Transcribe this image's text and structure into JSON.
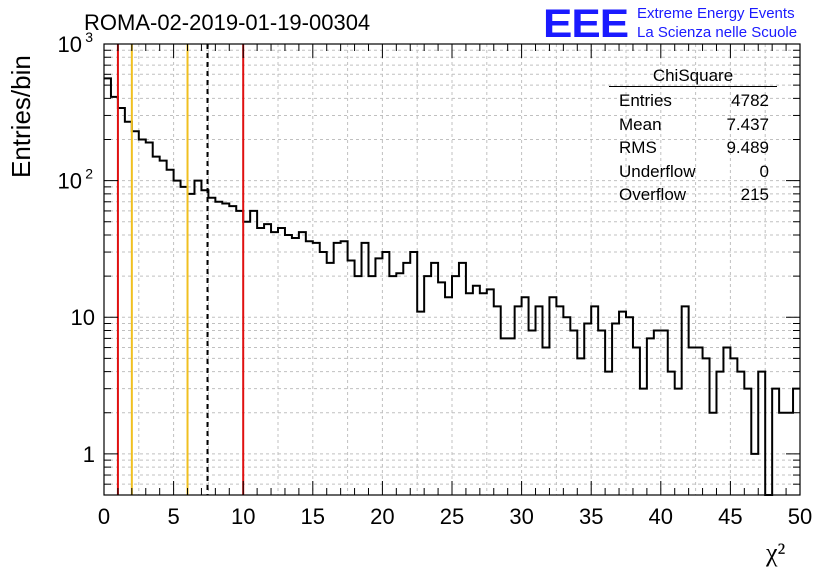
{
  "title": "ROMA-02-2019-01-19-00304",
  "logo": {
    "mark": "EEE",
    "line1": "Extreme Energy Events",
    "line2": "La Scienza nelle Scuole"
  },
  "stats": {
    "name": "ChiSquare",
    "rows": [
      {
        "label": "Entries",
        "value": "4782"
      },
      {
        "label": "Mean",
        "value": "7.437"
      },
      {
        "label": "RMS",
        "value": "9.489"
      },
      {
        "label": "Underflow",
        "value": "0"
      },
      {
        "label": "Overflow",
        "value": "215"
      }
    ]
  },
  "colors": {
    "red": "#e01010",
    "yellow": "#f0c020",
    "black": "#000000",
    "grid": "#c0c0c0",
    "logo": "#1a1aff"
  },
  "chart_data": {
    "type": "bar",
    "histogram": true,
    "xlabel": "χ²",
    "ylabel": "Entries/bin",
    "xlim": [
      0,
      50
    ],
    "ylim": [
      0.5,
      1000
    ],
    "yscale": "log",
    "grid": true,
    "bin_width": 0.5,
    "xticks": [
      "0",
      "5",
      "10",
      "15",
      "20",
      "25",
      "30",
      "35",
      "40",
      "45",
      "50"
    ],
    "yticks": [
      {
        "value": 1,
        "label": "1"
      },
      {
        "value": 10,
        "label": "10"
      },
      {
        "value": 100,
        "label": "10",
        "exp": "2"
      },
      {
        "value": 1000,
        "label": "10",
        "exp": "3"
      }
    ],
    "counts": [
      560,
      410,
      340,
      270,
      230,
      200,
      190,
      150,
      140,
      120,
      100,
      90,
      80,
      100,
      85,
      75,
      70,
      68,
      65,
      60,
      50,
      60,
      45,
      48,
      42,
      45,
      40,
      38,
      42,
      36,
      35,
      30,
      25,
      35,
      36,
      26,
      20,
      35,
      20,
      27,
      30,
      20,
      21,
      25,
      30,
      11,
      20,
      25,
      18,
      14,
      20,
      25,
      15,
      17,
      15,
      16,
      12,
      7,
      7,
      12,
      14,
      8,
      12,
      6,
      14,
      12,
      10,
      8,
      5,
      9,
      12,
      8,
      4,
      9,
      11,
      10,
      6,
      3,
      7,
      8,
      8,
      4,
      3,
      12,
      6,
      6,
      5,
      2,
      4,
      6,
      5,
      4,
      3,
      1,
      4,
      0.3,
      3,
      2,
      2,
      3
    ],
    "vlines": [
      {
        "x": 1,
        "color": "red",
        "style": "solid"
      },
      {
        "x": 2,
        "color": "yellow",
        "style": "solid"
      },
      {
        "x": 6,
        "color": "yellow",
        "style": "solid"
      },
      {
        "x": 7.437,
        "color": "black",
        "style": "dashed"
      },
      {
        "x": 10,
        "color": "red",
        "style": "solid"
      }
    ]
  }
}
